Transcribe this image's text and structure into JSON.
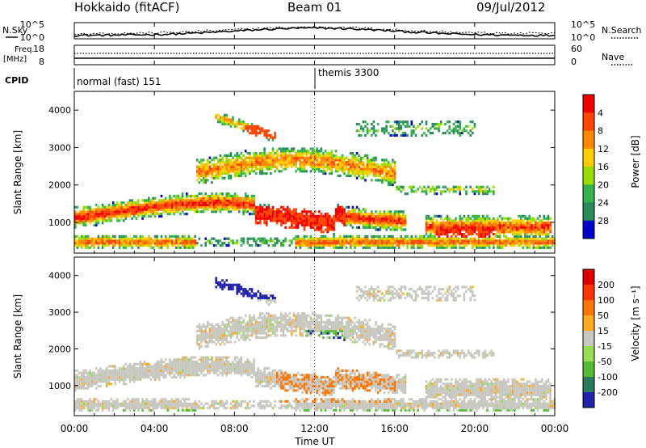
{
  "header": {
    "station": "Hokkaido (fitACF)",
    "beam": "Beam 01",
    "date": "09/Jul/2012"
  },
  "panels": {
    "nsky": {
      "label": "N.Sky",
      "left_ticks": [
        "10^5",
        "10^0"
      ],
      "right_label": "N.Search",
      "right_ticks": [
        "10^5",
        "10^0"
      ]
    },
    "freq": {
      "label_line1": "Freq.",
      "label_line2": "[MHz]",
      "left_ticks": [
        "18",
        "8"
      ],
      "right_label": "Nave",
      "right_ticks": [
        "60",
        "0"
      ]
    },
    "cpid": {
      "label": "CPID",
      "segments": [
        {
          "name": "normal (fast) 151",
          "start_hour": 0
        },
        {
          "name": "themis 3300",
          "start_hour": 12
        }
      ]
    }
  },
  "chart_data": [
    {
      "type": "heatmap",
      "title": "",
      "ylabel": "Slant Range [km]",
      "xlabel": "",
      "x_range_hours": [
        0,
        24
      ],
      "ylim": [
        180,
        4500
      ],
      "yticks": [
        1000,
        2000,
        3000,
        4000
      ],
      "colorbar": {
        "label": "Power [dB]",
        "ticks": [
          "4",
          "8",
          "12",
          "16",
          "20",
          "24",
          "28"
        ],
        "colors": [
          "#0000cc",
          "#2a8a5c",
          "#33b24d",
          "#99dd00",
          "#ffcc00",
          "#ff8800",
          "#ff4400",
          "#ee0000"
        ]
      }
    },
    {
      "type": "heatmap",
      "title": "",
      "ylabel": "Slant Range [km]",
      "xlabel": "Time UT",
      "x_range_hours": [
        0,
        24
      ],
      "xticks": [
        "00:00",
        "04:00",
        "08:00",
        "12:00",
        "16:00",
        "20:00",
        "00:00"
      ],
      "ylim": [
        180,
        4500
      ],
      "yticks": [
        1000,
        2000,
        3000,
        4000
      ],
      "colorbar": {
        "label": "Velocity [m s⁻¹]",
        "ticks": [
          "200",
          "100",
          "50",
          "15",
          "-15",
          "-50",
          "-100",
          "-200"
        ],
        "colors": [
          "#2222aa",
          "#2a7a5c",
          "#55bb33",
          "#99dd55",
          "#c8c8c0",
          "#ffaa22",
          "#ff7700",
          "#ff3300",
          "#dd0000"
        ]
      }
    }
  ]
}
